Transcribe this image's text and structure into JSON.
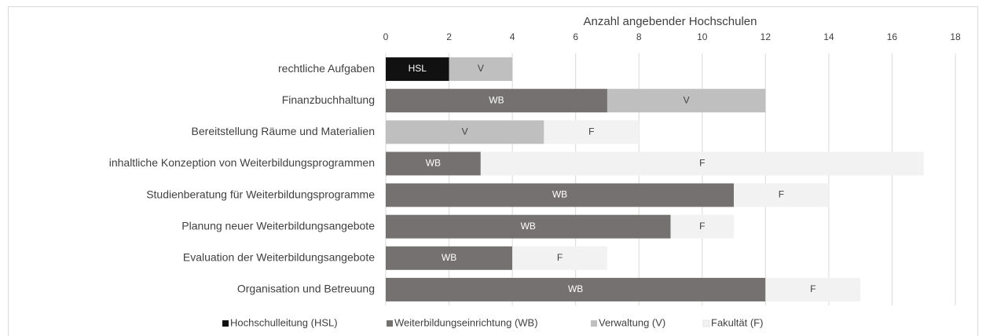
{
  "chart_data": {
    "type": "bar",
    "orientation": "horizontal",
    "stacked": true,
    "title": "Anzahl angebender Hochschulen",
    "categories": [
      "rechtliche Aufgaben",
      "Finanzbuchhaltung",
      "Bereitstellung Räume und Materialien",
      "inhaltliche Konzeption von Weiterbildungsprogrammen",
      "Studienberatung für Weiterbildungsprogramme",
      "Planung neuer Weiterbildungsangebote",
      "Evaluation der Weiterbildungsangebote",
      "Organisation und Betreuung"
    ],
    "series": [
      {
        "name": "Hochschulleitung (HSL)",
        "color": "#111111",
        "values": [
          2,
          null,
          null,
          null,
          null,
          null,
          null,
          null
        ],
        "value_labels": [
          "HSL",
          null,
          null,
          null,
          null,
          null,
          null,
          null
        ]
      },
      {
        "name": "Weiterbildungseinrichtung (WB)",
        "color": "#767171",
        "values": [
          null,
          7,
          null,
          3,
          11,
          9,
          4,
          12
        ],
        "value_labels": [
          null,
          "WB",
          null,
          "WB",
          "WB",
          "WB",
          "WB",
          "WB"
        ]
      },
      {
        "name": "Verwaltung (V)",
        "color": "#bfbfbf",
        "values": [
          2,
          5,
          5,
          null,
          null,
          null,
          null,
          null
        ],
        "value_labels": [
          "V",
          "V",
          "V",
          null,
          null,
          null,
          null,
          null
        ]
      },
      {
        "name": "Fakultät (F)",
        "color": "#f2f2f2",
        "values": [
          null,
          null,
          3,
          14,
          3,
          2,
          3,
          3
        ],
        "value_labels": [
          null,
          null,
          "F",
          "F",
          "F",
          "F",
          "F",
          "F"
        ]
      }
    ],
    "xlim": [
      0,
      18
    ],
    "xticks": [
      0,
      2,
      4,
      6,
      8,
      10,
      12,
      14,
      16,
      18
    ],
    "grid": true,
    "legend": "bottom"
  }
}
